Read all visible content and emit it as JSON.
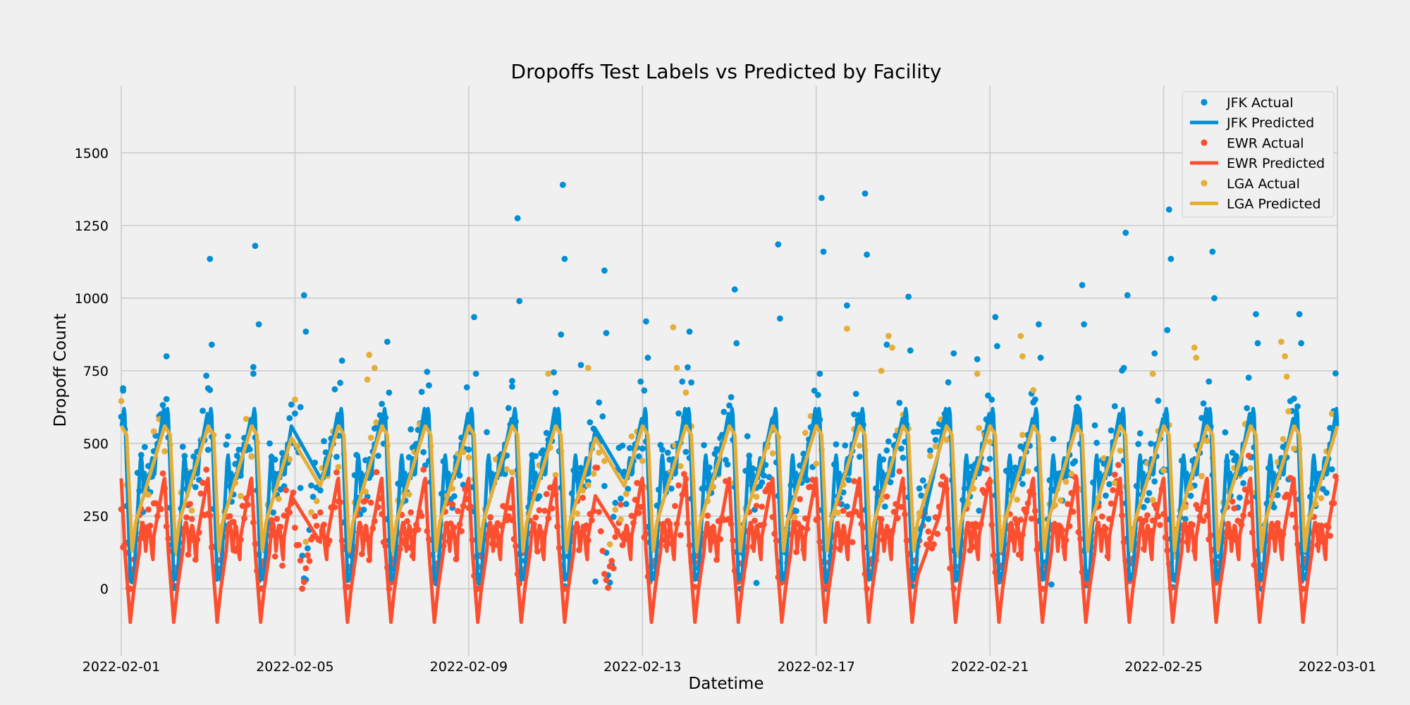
{
  "chart_data": {
    "type": "line",
    "title": "Dropoffs Test Labels vs Predicted by Facility",
    "xlabel": "Datetime",
    "ylabel": "Dropoff Count",
    "x_range": [
      "2022-02-01",
      "2022-03-01"
    ],
    "ylim": [
      -230,
      1730
    ],
    "grid": true,
    "legend_position": "top-right",
    "x_ticks": [
      "2022-02-01",
      "2022-02-05",
      "2022-02-09",
      "2022-02-13",
      "2022-02-17",
      "2022-02-21",
      "2022-02-25",
      "2022-03-01"
    ],
    "y_ticks": [
      0,
      250,
      500,
      750,
      1000,
      1250,
      1500
    ],
    "colors": {
      "jfk": "#008fd5",
      "ewr": "#fc4f30",
      "lga": "#e5ae38"
    },
    "series": [
      {
        "name": "JFK Actual",
        "kind": "scatter",
        "color": "#008fd5",
        "points": [
          [
            "2022-02-01 01:00",
            690
          ],
          [
            "2022-02-02 01:00",
            800
          ],
          [
            "2022-02-03 01:00",
            1135
          ],
          [
            "2022-02-03 02:00",
            840
          ],
          [
            "2022-02-03 00:00",
            690
          ],
          [
            "2022-02-04 02:00",
            1180
          ],
          [
            "2022-02-04 04:00",
            910
          ],
          [
            "2022-02-04 01:00",
            740
          ],
          [
            "2022-02-05 05:00",
            1010
          ],
          [
            "2022-02-05 06:00",
            885
          ],
          [
            "2022-02-05 03:00",
            625
          ],
          [
            "2022-02-06 02:00",
            785
          ],
          [
            "2022-02-07 03:00",
            850
          ],
          [
            "2022-02-07 04:00",
            675
          ],
          [
            "2022-02-08 02:00",
            700
          ],
          [
            "2022-02-09 03:00",
            935
          ],
          [
            "2022-02-09 04:00",
            740
          ],
          [
            "2022-02-10 03:00",
            1275
          ],
          [
            "2022-02-10 04:00",
            990
          ],
          [
            "2022-02-10 00:00",
            715
          ],
          [
            "2022-02-11 04:00",
            1390
          ],
          [
            "2022-02-11 05:00",
            1135
          ],
          [
            "2022-02-11 03:00",
            875
          ],
          [
            "2022-02-11 14:00",
            770
          ],
          [
            "2022-02-12 03:00",
            1095
          ],
          [
            "2022-02-12 04:00",
            880
          ],
          [
            "2022-02-13 02:00",
            920
          ],
          [
            "2022-02-13 03:00",
            795
          ],
          [
            "2022-02-14 02:00",
            885
          ],
          [
            "2022-02-14 03:00",
            710
          ],
          [
            "2022-02-15 03:00",
            1030
          ],
          [
            "2022-02-15 04:00",
            845
          ],
          [
            "2022-02-16 03:00",
            1185
          ],
          [
            "2022-02-16 04:00",
            930
          ],
          [
            "2022-02-17 03:00",
            1345
          ],
          [
            "2022-02-17 04:00",
            1160
          ],
          [
            "2022-02-17 02:00",
            740
          ],
          [
            "2022-02-17 17:00",
            975
          ],
          [
            "2022-02-18 03:00",
            1360
          ],
          [
            "2022-02-18 04:00",
            1150
          ],
          [
            "2022-02-18 15:00",
            840
          ],
          [
            "2022-02-19 03:00",
            1005
          ],
          [
            "2022-02-19 04:00",
            820
          ],
          [
            "2022-02-20 04:00",
            810
          ],
          [
            "2022-02-20 17:00",
            790
          ],
          [
            "2022-02-21 03:00",
            935
          ],
          [
            "2022-02-21 04:00",
            835
          ],
          [
            "2022-02-22 03:00",
            910
          ],
          [
            "2022-02-22 04:00",
            795
          ],
          [
            "2022-02-23 03:00",
            1045
          ],
          [
            "2022-02-23 04:00",
            910
          ],
          [
            "2022-02-24 03:00",
            1225
          ],
          [
            "2022-02-24 04:00",
            1010
          ],
          [
            "2022-02-24 02:00",
            760
          ],
          [
            "2022-02-24 19:00",
            810
          ],
          [
            "2022-02-25 03:00",
            1305
          ],
          [
            "2022-02-25 04:00",
            1135
          ],
          [
            "2022-02-25 02:00",
            890
          ],
          [
            "2022-02-26 03:00",
            1160
          ],
          [
            "2022-02-26 04:00",
            1000
          ],
          [
            "2022-02-27 03:00",
            945
          ],
          [
            "2022-02-27 04:00",
            845
          ],
          [
            "2022-02-28 03:00",
            945
          ],
          [
            "2022-02-28 04:00",
            845
          ],
          [
            "2022-02-11 22:00",
            25
          ],
          [
            "2022-02-15 15:00",
            20
          ],
          [
            "2022-02-22 10:00",
            15
          ]
        ]
      },
      {
        "name": "JFK Predicted",
        "kind": "line",
        "color": "#008fd5",
        "profile": "jfk_daily"
      },
      {
        "name": "EWR Actual",
        "kind": "scatter",
        "color": "#fc4f30",
        "profile": "ewr_daily_noisy"
      },
      {
        "name": "EWR Predicted",
        "kind": "line",
        "color": "#fc4f30",
        "profile": "ewr_daily"
      },
      {
        "name": "LGA Actual",
        "kind": "scatter",
        "color": "#e5ae38",
        "points": [
          [
            "2022-02-06 17:00",
            805
          ],
          [
            "2022-02-06 20:00",
            760
          ],
          [
            "2022-02-06 16:00",
            720
          ],
          [
            "2022-02-10 20:00",
            740
          ],
          [
            "2022-02-11 18:00",
            760
          ],
          [
            "2022-02-13 17:00",
            900
          ],
          [
            "2022-02-13 19:00",
            760
          ],
          [
            "2022-02-17 17:00",
            895
          ],
          [
            "2022-02-18 16:00",
            870
          ],
          [
            "2022-02-18 18:00",
            830
          ],
          [
            "2022-02-18 12:00",
            750
          ],
          [
            "2022-02-21 17:00",
            870
          ],
          [
            "2022-02-21 18:00",
            800
          ],
          [
            "2022-02-20 17:00",
            740
          ],
          [
            "2022-02-24 18:00",
            740
          ],
          [
            "2022-02-25 17:00",
            830
          ],
          [
            "2022-02-25 18:00",
            795
          ],
          [
            "2022-02-27 17:00",
            850
          ],
          [
            "2022-02-27 19:00",
            800
          ],
          [
            "2022-02-27 20:00",
            730
          ]
        ]
      },
      {
        "name": "LGA Predicted",
        "kind": "line",
        "color": "#e5ae38",
        "profile": "lga_daily"
      }
    ]
  }
}
